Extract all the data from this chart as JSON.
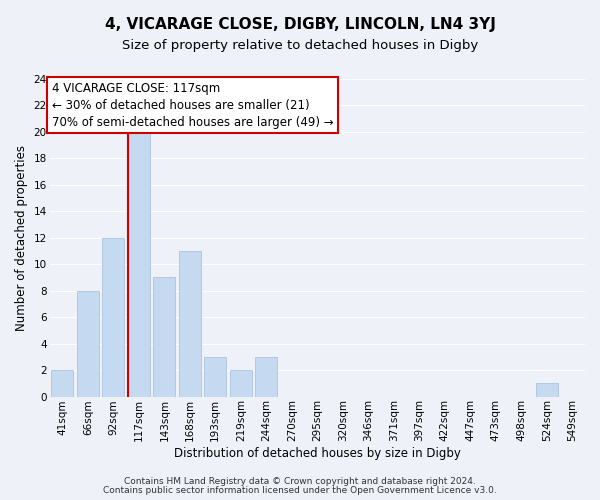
{
  "title": "4, VICARAGE CLOSE, DIGBY, LINCOLN, LN4 3YJ",
  "subtitle": "Size of property relative to detached houses in Digby",
  "xlabel": "Distribution of detached houses by size in Digby",
  "ylabel": "Number of detached properties",
  "bin_labels": [
    "41sqm",
    "66sqm",
    "92sqm",
    "117sqm",
    "143sqm",
    "168sqm",
    "193sqm",
    "219sqm",
    "244sqm",
    "270sqm",
    "295sqm",
    "320sqm",
    "346sqm",
    "371sqm",
    "397sqm",
    "422sqm",
    "447sqm",
    "473sqm",
    "498sqm",
    "524sqm",
    "549sqm"
  ],
  "bar_heights": [
    2,
    8,
    12,
    20,
    9,
    11,
    3,
    2,
    3,
    0,
    0,
    0,
    0,
    0,
    0,
    0,
    0,
    0,
    0,
    1,
    0
  ],
  "bar_color": "#c5d9f0",
  "bar_edge_color": "#aac4e0",
  "vline_x_index": 3,
  "vline_color": "#cc0000",
  "ylim": [
    0,
    24
  ],
  "yticks": [
    0,
    2,
    4,
    6,
    8,
    10,
    12,
    14,
    16,
    18,
    20,
    22,
    24
  ],
  "annotation_line1": "4 VICARAGE CLOSE: 117sqm",
  "annotation_line2": "← 30% of detached houses are smaller (21)",
  "annotation_line3": "70% of semi-detached houses are larger (49) →",
  "annotation_box_color": "#ffffff",
  "annotation_box_edgecolor": "#cc0000",
  "footer_line1": "Contains HM Land Registry data © Crown copyright and database right 2024.",
  "footer_line2": "Contains public sector information licensed under the Open Government Licence v3.0.",
  "background_color": "#eef2f8",
  "grid_color": "#ffffff",
  "title_fontsize": 11,
  "subtitle_fontsize": 9.5,
  "axis_label_fontsize": 8.5,
  "tick_fontsize": 7.5,
  "annotation_fontsize": 8.5,
  "footer_fontsize": 6.5
}
